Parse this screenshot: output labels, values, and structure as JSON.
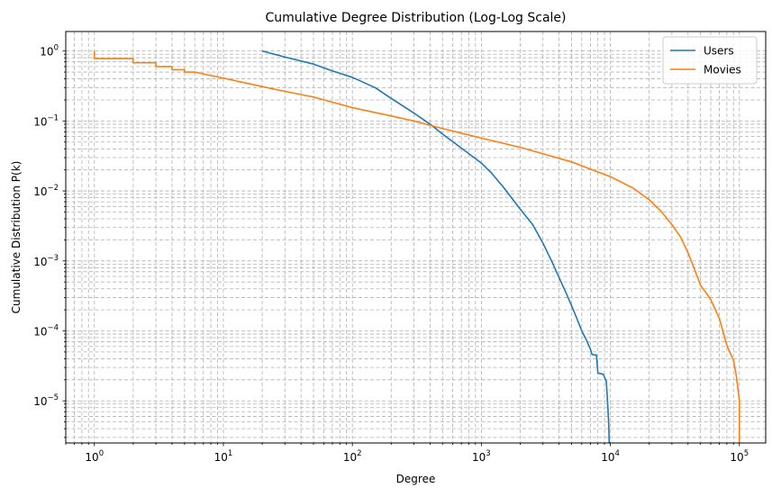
{
  "chart_data": {
    "type": "line",
    "title": "Cumulative Degree Distribution (Log-Log Scale)",
    "xlabel": "Degree",
    "ylabel": "Cumulative Distribution P(k)",
    "x_scale": "log",
    "y_scale": "log",
    "xlim": [
      0.6,
      160000
    ],
    "ylim": [
      2.5e-06,
      1.9
    ],
    "x_ticks": [
      {
        "value": 1,
        "base": "10",
        "exp": "0"
      },
      {
        "value": 10,
        "base": "10",
        "exp": "1"
      },
      {
        "value": 100,
        "base": "10",
        "exp": "2"
      },
      {
        "value": 1000,
        "base": "10",
        "exp": "3"
      },
      {
        "value": 10000,
        "base": "10",
        "exp": "4"
      },
      {
        "value": 100000,
        "base": "10",
        "exp": "5"
      }
    ],
    "y_ticks": [
      {
        "value": 1e-05,
        "base": "10",
        "exp": "−5"
      },
      {
        "value": 0.0001,
        "base": "10",
        "exp": "−4"
      },
      {
        "value": 0.001,
        "base": "10",
        "exp": "−3"
      },
      {
        "value": 0.01,
        "base": "10",
        "exp": "−2"
      },
      {
        "value": 0.1,
        "base": "10",
        "exp": "−1"
      },
      {
        "value": 1,
        "base": "10",
        "exp": "0"
      }
    ],
    "grid": true,
    "grid_minor": true,
    "legend_position": "top-right",
    "series": [
      {
        "name": "Users",
        "color": "#1f77b4",
        "points": [
          [
            20,
            1.0
          ],
          [
            30,
            0.82
          ],
          [
            50,
            0.65
          ],
          [
            70,
            0.52
          ],
          [
            100,
            0.42
          ],
          [
            150,
            0.3
          ],
          [
            200,
            0.21
          ],
          [
            300,
            0.13
          ],
          [
            400,
            0.09
          ],
          [
            500,
            0.065
          ],
          [
            700,
            0.041
          ],
          [
            1000,
            0.025
          ],
          [
            1200,
            0.018
          ],
          [
            1500,
            0.011
          ],
          [
            2000,
            0.0055
          ],
          [
            2500,
            0.0033
          ],
          [
            3000,
            0.0018
          ],
          [
            3500,
            0.001
          ],
          [
            4000,
            0.00058
          ],
          [
            4500,
            0.00036
          ],
          [
            5000,
            0.00023
          ],
          [
            5500,
            0.00015
          ],
          [
            6000,
            0.0001
          ],
          [
            6500,
            7.5e-05
          ],
          [
            7000,
            5.5e-05
          ],
          [
            7200,
            4.6e-05
          ],
          [
            7800,
            4.5e-05
          ],
          [
            8000,
            2.5e-05
          ],
          [
            8800,
            2.4e-05
          ],
          [
            9300,
            1.9e-05
          ],
          [
            9500,
            1e-05
          ],
          [
            9700,
            5e-06
          ],
          [
            9800,
            2.5e-06
          ]
        ]
      },
      {
        "name": "Movies",
        "color": "#ff7f0e",
        "points": [
          [
            1,
            1.0
          ],
          [
            1,
            0.78
          ],
          [
            2,
            0.78
          ],
          [
            2,
            0.68
          ],
          [
            3,
            0.68
          ],
          [
            3,
            0.6
          ],
          [
            4,
            0.6
          ],
          [
            4,
            0.54
          ],
          [
            5,
            0.54
          ],
          [
            5,
            0.5
          ],
          [
            6,
            0.5
          ],
          [
            7,
            0.47
          ],
          [
            10,
            0.41
          ],
          [
            20,
            0.31
          ],
          [
            30,
            0.265
          ],
          [
            50,
            0.22
          ],
          [
            100,
            0.155
          ],
          [
            200,
            0.118
          ],
          [
            300,
            0.1
          ],
          [
            500,
            0.078
          ],
          [
            1000,
            0.057
          ],
          [
            2000,
            0.042
          ],
          [
            3000,
            0.034
          ],
          [
            5000,
            0.026
          ],
          [
            10000,
            0.016
          ],
          [
            15000,
            0.011
          ],
          [
            20000,
            0.0075
          ],
          [
            25000,
            0.005
          ],
          [
            30000,
            0.0033
          ],
          [
            35000,
            0.0022
          ],
          [
            40000,
            0.0013
          ],
          [
            45000,
            0.00075
          ],
          [
            50000,
            0.00045
          ],
          [
            60000,
            0.00028
          ],
          [
            70000,
            0.00015
          ],
          [
            75000,
            9.5e-05
          ],
          [
            80000,
            6.2e-05
          ],
          [
            90000,
            3.8e-05
          ],
          [
            95000,
            2.2e-05
          ],
          [
            100000,
            1e-05
          ],
          [
            100000,
            2.5e-06
          ]
        ]
      }
    ]
  }
}
